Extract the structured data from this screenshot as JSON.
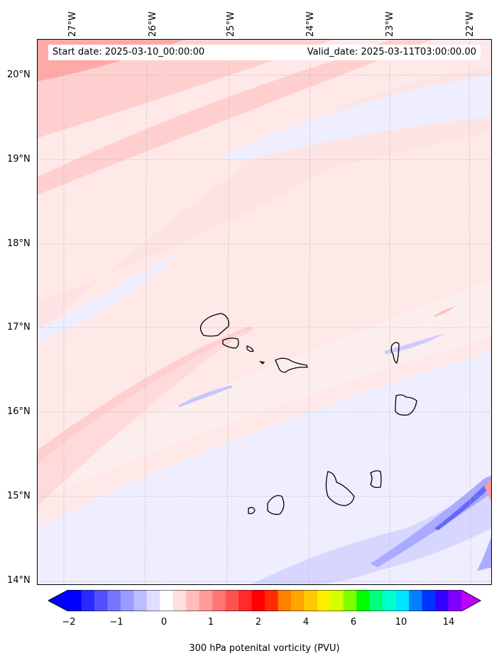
{
  "map": {
    "start_date": "Start date: 2025-03-10_00:00:00",
    "valid_date": "Valid_date: 2025-03-11T03:00:00.00",
    "lon_labels": [
      "27°W",
      "26°W",
      "25°W",
      "24°W",
      "23°W",
      "22°W"
    ],
    "lat_labels": [
      "20°N",
      "19°N",
      "18°N",
      "17°N",
      "16°N",
      "15°N",
      "14°N"
    ],
    "variable": "300 hPa potenital vorticity (PVU)"
  },
  "colorbar": {
    "tick_labels": [
      "−2",
      "−1",
      "0",
      "1",
      "2",
      "4",
      "6",
      "10",
      "14"
    ],
    "colors": [
      "#0000ff",
      "#2a2aff",
      "#5050ff",
      "#7575ff",
      "#9a9aff",
      "#bcbcff",
      "#dedeff",
      "#ffffff",
      "#ffdede",
      "#ffbcbc",
      "#ff9a9a",
      "#ff7575",
      "#ff5050",
      "#ff2a2a",
      "#ff0000",
      "#ff2a00",
      "#ff7f00",
      "#ffa500",
      "#ffc800",
      "#ffee00",
      "#d4ff00",
      "#80ff00",
      "#00ff00",
      "#00ff80",
      "#00ffcc",
      "#00e5ff",
      "#0080ff",
      "#0033ff",
      "#3300ff",
      "#8000ff"
    ],
    "under_color": "#0000ff",
    "over_color": "#c000ff"
  }
}
